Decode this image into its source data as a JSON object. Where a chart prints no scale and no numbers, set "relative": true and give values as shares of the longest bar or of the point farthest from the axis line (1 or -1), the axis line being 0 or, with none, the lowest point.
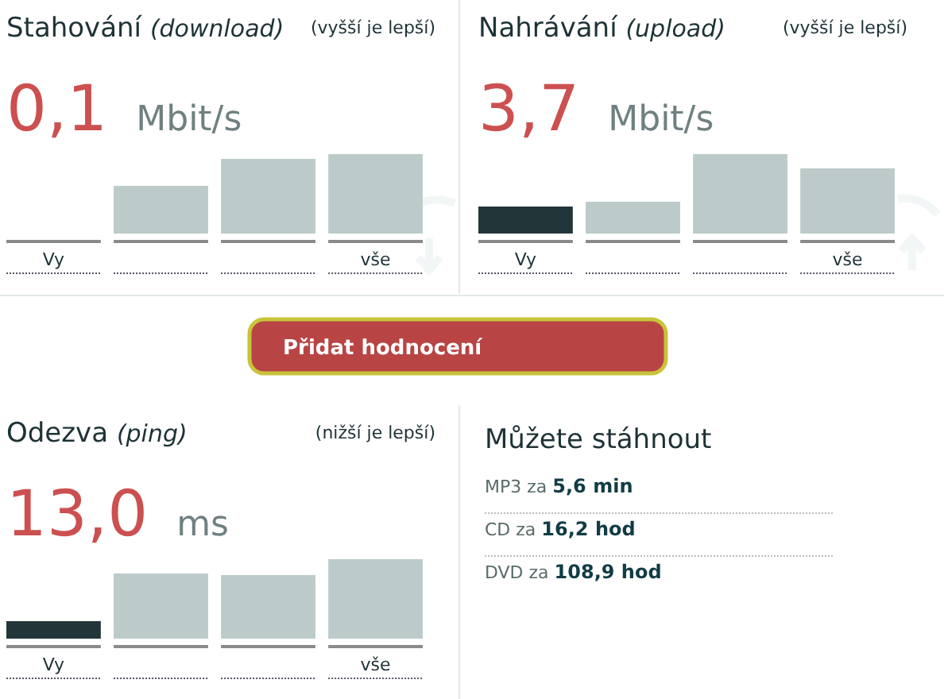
{
  "chart_data": [
    {
      "type": "bar",
      "title": "Stahování (download)",
      "subtitle": "(vyšší je lepší)",
      "annotations": [
        "0,1",
        "Mbit/s"
      ],
      "relative": true,
      "categories": [
        "Vy",
        null,
        null,
        "vše"
      ],
      "values": [
        0,
        0.6,
        0.94,
        1
      ],
      "colors": [
        "#22363a",
        "#bccbc9",
        "#bccbc9",
        "#bccbc9"
      ]
    },
    {
      "type": "bar",
      "title": "Nahrávání (upload)",
      "subtitle": "(vyšší je lepší)",
      "annotations": [
        "3,7",
        "Mbit/s"
      ],
      "relative": true,
      "categories": [
        "Vy",
        null,
        null,
        "vše"
      ],
      "values": [
        0.34,
        0.4,
        1,
        0.82
      ],
      "colors": [
        "#22363a",
        "#bccbc9",
        "#bccbc9",
        "#bccbc9"
      ]
    },
    {
      "type": "other",
      "title": "Přidat hodnocení"
    },
    {
      "type": "bar",
      "title": "Odezva (ping)",
      "subtitle": "(nižší je lepší)",
      "annotations": [
        "13,0",
        "ms"
      ],
      "relative": true,
      "categories": [
        "Vy",
        null,
        null,
        "vše"
      ],
      "values": [
        0.22,
        0.82,
        0.8,
        1
      ],
      "colors": [
        "#22363a",
        "#bccbc9",
        "#bccbc9",
        "#bccbc9"
      ]
    },
    {
      "type": "other",
      "title": "Můžete stáhnout",
      "annotations": [
        "MP3 za 5,6 min",
        "CD za 16,2 hod",
        "DVD za 108,9 hod"
      ]
    }
  ]
}
